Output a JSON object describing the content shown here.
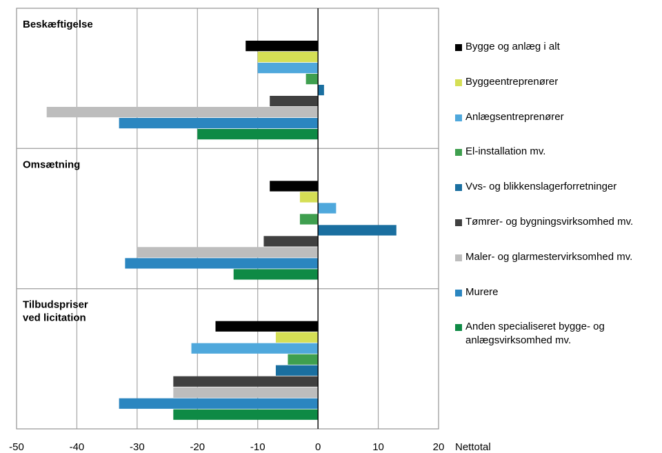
{
  "chart_data": {
    "type": "bar",
    "orientation": "horizontal",
    "xlim": [
      -50,
      20
    ],
    "x_ticks": [
      "-50",
      "-40",
      "-30",
      "-20",
      "-10",
      "0",
      "10",
      "20"
    ],
    "x_unit_label": "Nettotal",
    "grid": true,
    "legend_position": "right",
    "series": [
      {
        "name": "Bygge og anlæg i alt",
        "color": "#000000"
      },
      {
        "name": "Byggeentreprenører",
        "color": "#d5df55"
      },
      {
        "name": "Anlægsentreprenører",
        "color": "#4fa8dc"
      },
      {
        "name": "El-installation mv.",
        "color": "#3f9f4f"
      },
      {
        "name": "Vvs- og blikkenslagerforretninger",
        "color": "#1a6fa0"
      },
      {
        "name": "Tømrer- og bygningsvirksomhed mv.",
        "color": "#404040"
      },
      {
        "name": "Maler- og glarmestervirksomhed mv.",
        "color": "#bdbdbd"
      },
      {
        "name": "Murere",
        "color": "#2b86c0"
      },
      {
        "name": "Anden specialiseret bygge- og anlægsvirksomhed mv.",
        "color": "#0e8a45"
      }
    ],
    "panels": [
      {
        "title": [
          "Beskæftigelse"
        ],
        "values": [
          -12,
          -10,
          -10,
          -2,
          1,
          -8,
          -45,
          -33,
          -20
        ]
      },
      {
        "title": [
          "Omsætning"
        ],
        "values": [
          -8,
          -3,
          3,
          -3,
          13,
          -9,
          -30,
          -32,
          -14
        ]
      },
      {
        "title": [
          "Tilbudspriser",
          "ved licitation"
        ],
        "values": [
          -17,
          -7,
          -21,
          -5,
          -7,
          -24,
          -24,
          -33,
          -24
        ]
      }
    ]
  },
  "legend": {
    "items": [
      {
        "lines": [
          "Bygge og anlæg i alt"
        ]
      },
      {
        "lines": [
          "Byggeentreprenører"
        ]
      },
      {
        "lines": [
          "Anlægsentreprenører"
        ]
      },
      {
        "lines": [
          "El-installation mv."
        ]
      },
      {
        "lines": [
          "Vvs- og blikkenslagerforretninger"
        ]
      },
      {
        "lines": [
          "Tømrer- og bygningsvirksomhed mv."
        ]
      },
      {
        "lines": [
          "Maler- og glarmestervirksomhed mv."
        ]
      },
      {
        "lines": [
          "Murere"
        ]
      },
      {
        "lines": [
          "Anden specialiseret bygge- og",
          "anlægsvirksomhed mv."
        ]
      }
    ]
  }
}
